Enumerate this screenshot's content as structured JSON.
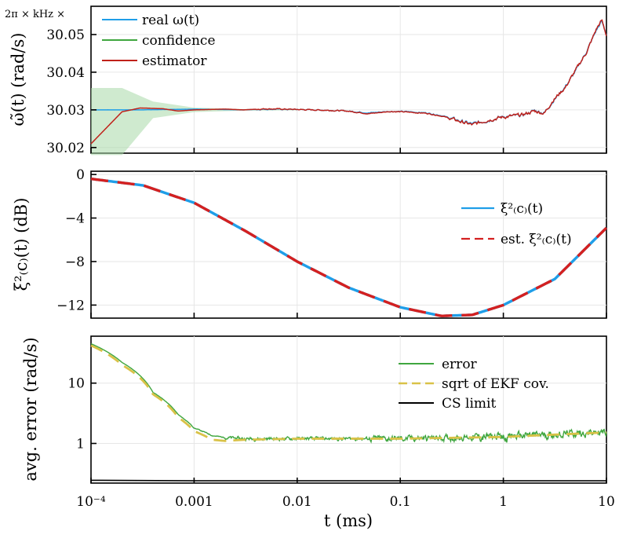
{
  "chart_data": [
    {
      "type": "line",
      "x_scale": "log",
      "xlim": [
        0.0001,
        10
      ],
      "y_scale_note": "2π × kHz ×",
      "ylabel": "ω̃(t) (rad/s)",
      "ylim": [
        30.0185,
        30.0575
      ],
      "yticks": [
        {
          "value": 30.02,
          "label": "30.02"
        },
        {
          "value": 30.03,
          "label": "30.03"
        },
        {
          "value": 30.04,
          "label": "30.04"
        },
        {
          "value": 30.05,
          "label": "30.05"
        }
      ],
      "legend_position": "top-left",
      "grid": true,
      "series": [
        {
          "name": "real ω(t)",
          "color": "#1f9ee8",
          "points": [
            [
              0.0001,
              30.03
            ],
            [
              0.0003,
              30.03
            ],
            [
              0.001,
              30.0302
            ],
            [
              0.003,
              30.03
            ],
            [
              0.005,
              30.0302
            ],
            [
              0.01,
              30.0301
            ],
            [
              0.02,
              30.0299
            ],
            [
              0.03,
              30.0297
            ],
            [
              0.05,
              30.0292
            ],
            [
              0.08,
              30.0296
            ],
            [
              0.12,
              30.0295
            ],
            [
              0.18,
              30.0292
            ],
            [
              0.25,
              30.0285
            ],
            [
              0.35,
              30.0273
            ],
            [
              0.5,
              30.0262
            ],
            [
              0.7,
              30.0272
            ],
            [
              1.0,
              30.0282
            ],
            [
              1.5,
              30.0285
            ],
            [
              2.0,
              30.0298
            ],
            [
              2.5,
              30.0292
            ],
            [
              3.0,
              30.0322
            ],
            [
              4.0,
              30.0362
            ],
            [
              5.0,
              30.0402
            ],
            [
              6.5,
              30.0458
            ],
            [
              8.0,
              30.0512
            ],
            [
              9.0,
              30.0535
            ],
            [
              10.0,
              30.05
            ]
          ]
        },
        {
          "name": "confidence",
          "color": "#3fa63f",
          "band": true,
          "upper": [
            [
              0.0001,
              30.0358
            ],
            [
              0.0002,
              30.0358
            ],
            [
              0.0004,
              30.0322
            ],
            [
              0.001,
              30.0306
            ],
            [
              0.003,
              30.0302
            ],
            [
              0.01,
              30.0301
            ]
          ],
          "lower": [
            [
              0.0001,
              30.018
            ],
            [
              0.0002,
              30.018
            ],
            [
              0.0004,
              30.0278
            ],
            [
              0.001,
              30.0294
            ],
            [
              0.003,
              30.0298
            ],
            [
              0.01,
              30.0299
            ]
          ]
        },
        {
          "name": "estimator",
          "color": "#c0211a",
          "points": [
            [
              0.0001,
              30.021
            ],
            [
              0.0002,
              30.0295
            ],
            [
              0.0003,
              30.0305
            ],
            [
              0.0005,
              30.0303
            ],
            [
              0.0007,
              30.0297
            ],
            [
              0.001,
              30.03
            ],
            [
              0.002,
              30.0302
            ],
            [
              0.003,
              30.03
            ],
            [
              0.005,
              30.0303
            ],
            [
              0.01,
              30.0301
            ],
            [
              0.02,
              30.0299
            ],
            [
              0.03,
              30.0297
            ],
            [
              0.05,
              30.029
            ],
            [
              0.08,
              30.0296
            ],
            [
              0.12,
              30.0294
            ],
            [
              0.18,
              30.0291
            ],
            [
              0.25,
              30.0284
            ],
            [
              0.35,
              30.0272
            ],
            [
              0.5,
              30.026
            ],
            [
              0.7,
              30.0273
            ],
            [
              1.0,
              30.0281
            ],
            [
              1.5,
              30.0286
            ],
            [
              2.0,
              30.0297
            ],
            [
              2.5,
              30.0291
            ],
            [
              3.0,
              30.0324
            ],
            [
              4.0,
              30.036
            ],
            [
              5.0,
              30.0404
            ],
            [
              6.5,
              30.0456
            ],
            [
              8.0,
              30.0515
            ],
            [
              9.0,
              30.0538
            ],
            [
              10.0,
              30.0498
            ]
          ]
        }
      ]
    },
    {
      "type": "line",
      "x_scale": "log",
      "xlim": [
        0.0001,
        10
      ],
      "ylabel": "ξ²₍c₎(t) (dB)",
      "ylim": [
        -13.2,
        0.3
      ],
      "yticks": [
        {
          "value": 0,
          "label": "0"
        },
        {
          "value": -4,
          "label": "−4"
        },
        {
          "value": -8,
          "label": "−8"
        },
        {
          "value": -12,
          "label": "−12"
        }
      ],
      "legend_position": "right",
      "grid": true,
      "series": [
        {
          "name": "ξ²₍c₎(t)",
          "color": "#1f9ee8",
          "points": [
            [
              0.0001,
              -0.4
            ],
            [
              0.00032,
              -1.0
            ],
            [
              0.001,
              -2.6
            ],
            [
              0.00316,
              -5.2
            ],
            [
              0.01,
              -8.0
            ],
            [
              0.0316,
              -10.4
            ],
            [
              0.1,
              -12.2
            ],
            [
              0.25,
              -13.0
            ],
            [
              0.5,
              -12.9
            ],
            [
              1.0,
              -12.0
            ],
            [
              3.16,
              -9.6
            ],
            [
              10,
              -4.9
            ]
          ]
        },
        {
          "name": "est. ξ²₍c₎(t)",
          "color": "#d42020",
          "dashed": true,
          "points": [
            [
              0.0001,
              -0.4
            ],
            [
              0.00032,
              -1.0
            ],
            [
              0.001,
              -2.6
            ],
            [
              0.00316,
              -5.2
            ],
            [
              0.01,
              -8.0
            ],
            [
              0.0316,
              -10.4
            ],
            [
              0.1,
              -12.2
            ],
            [
              0.25,
              -13.0
            ],
            [
              0.5,
              -12.9
            ],
            [
              1.0,
              -12.0
            ],
            [
              3.16,
              -9.6
            ],
            [
              10,
              -4.9
            ]
          ]
        }
      ]
    },
    {
      "type": "line",
      "x_scale": "log",
      "y_scale": "log",
      "xlim": [
        0.0001,
        10
      ],
      "ylim": [
        0.22,
        60
      ],
      "xlabel": "t (ms)",
      "ylabel": "avg. error (rad/s)",
      "xticks": [
        {
          "value": 0.0001,
          "label": "10⁻⁴"
        },
        {
          "value": 0.001,
          "label": "0.001"
        },
        {
          "value": 0.01,
          "label": "0.01"
        },
        {
          "value": 0.1,
          "label": "0.1"
        },
        {
          "value": 1,
          "label": "1"
        },
        {
          "value": 10,
          "label": "10"
        }
      ],
      "yticks": [
        {
          "value": 1,
          "label": "1"
        },
        {
          "value": 10,
          "label": "10"
        }
      ],
      "legend_position": "right",
      "grid": true,
      "series": [
        {
          "name": "error",
          "color": "#3fa63f",
          "points": [
            [
              0.0001,
              45
            ],
            [
              0.0002,
              22
            ],
            [
              0.0004,
              7
            ],
            [
              0.0007,
              3.0
            ],
            [
              0.001,
              1.8
            ],
            [
              0.0015,
              1.35
            ],
            [
              0.002,
              1.25
            ],
            [
              0.003,
              1.2
            ],
            [
              0.01,
              1.2
            ],
            [
              0.1,
              1.2
            ],
            [
              1,
              1.3
            ],
            [
              10,
              1.55
            ]
          ]
        },
        {
          "name": "sqrt of EKF cov.",
          "color": "#d9c248",
          "dashed": true,
          "points": [
            [
              0.0001,
              42
            ],
            [
              0.0002,
              20
            ],
            [
              0.0004,
              6.5
            ],
            [
              0.0007,
              2.7
            ],
            [
              0.001,
              1.6
            ],
            [
              0.0015,
              1.15
            ],
            [
              0.002,
              1.1
            ],
            [
              0.003,
              1.15
            ],
            [
              0.01,
              1.2
            ],
            [
              0.1,
              1.2
            ],
            [
              1,
              1.28
            ],
            [
              10,
              1.52
            ]
          ]
        },
        {
          "name": "CS limit",
          "color": "#000000",
          "points": [
            [
              0.0001,
              0.245
            ],
            [
              0.001,
              0.24
            ],
            [
              10,
              0.24
            ]
          ]
        }
      ]
    }
  ]
}
